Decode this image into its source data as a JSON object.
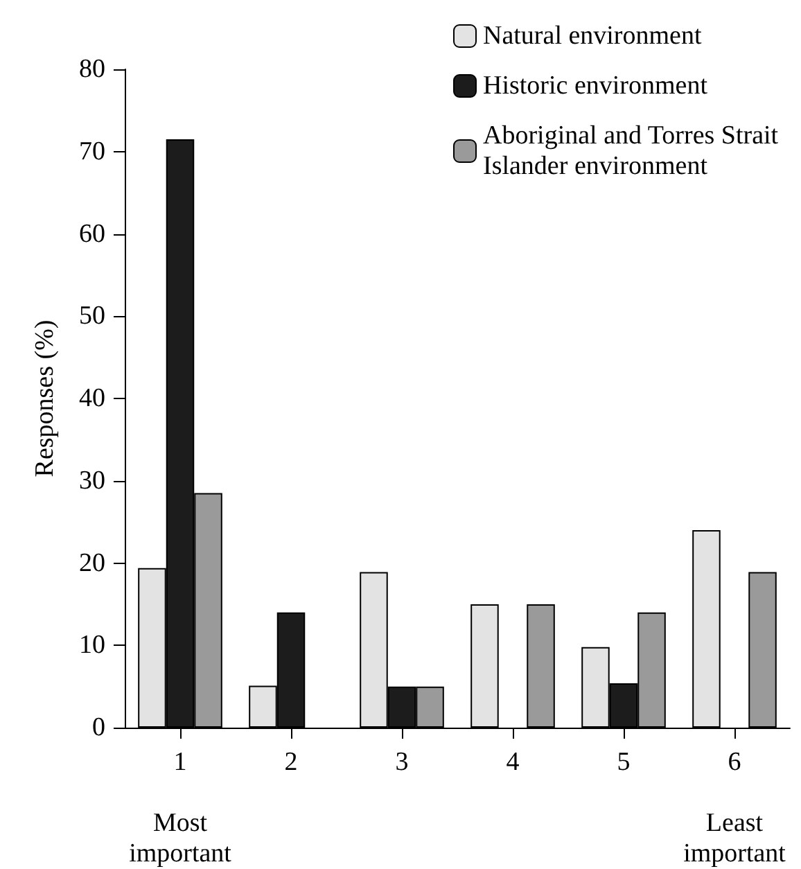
{
  "chart_data": {
    "type": "bar",
    "ylabel": "Responses (%)",
    "categories": [
      "1\n\nMost\nimportant",
      "2",
      "3",
      "4",
      "5",
      "6\n\nLeast\nimportant"
    ],
    "series": [
      {
        "name": "Natural environment",
        "color": "#e3e3e3",
        "values": [
          19.4,
          5.1,
          18.9,
          15,
          9.8,
          24
        ]
      },
      {
        "name": "Historic environment",
        "color": "#1c1c1c",
        "values": [
          71.5,
          14,
          5,
          null,
          5.4,
          null
        ]
      },
      {
        "name": "Aboriginal and Torres Strait Islander environment",
        "color": "#9a9a9a",
        "values": [
          28.5,
          null,
          5,
          15,
          14,
          18.9
        ]
      }
    ],
    "ylim": [
      0,
      80
    ],
    "yticks": [
      0,
      10,
      20,
      30,
      40,
      50,
      60,
      70,
      80
    ],
    "grid": false,
    "legend": "top right"
  }
}
